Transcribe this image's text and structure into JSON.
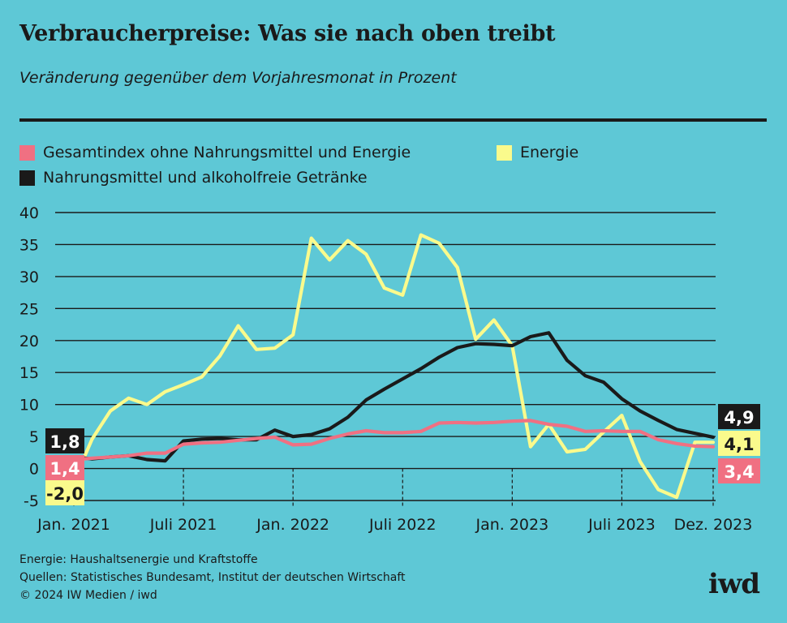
{
  "title": "Verbraucherpreise: Was sie nach oben treibt",
  "subtitle": "Veränderung gegenüber dem Vorjahresmonat in Prozent",
  "legend": [
    {
      "label": "Gesamtindex ohne Nahrungsmittel und Energie",
      "color": "#f07082"
    },
    {
      "label": "Energie",
      "color": "#fafa8c"
    },
    {
      "label": "Nahrungsmittel und alkoholfreie Getränke",
      "color": "#1a1a1a"
    }
  ],
  "chart_data": {
    "type": "line",
    "x": [
      "2021-01",
      "2021-02",
      "2021-03",
      "2021-04",
      "2021-05",
      "2021-06",
      "2021-07",
      "2021-08",
      "2021-09",
      "2021-10",
      "2021-11",
      "2021-12",
      "2022-01",
      "2022-02",
      "2022-03",
      "2022-04",
      "2022-05",
      "2022-06",
      "2022-07",
      "2022-08",
      "2022-09",
      "2022-10",
      "2022-11",
      "2022-12",
      "2023-01",
      "2023-02",
      "2023-03",
      "2023-04",
      "2023-05",
      "2023-06",
      "2023-07",
      "2023-08",
      "2023-09",
      "2023-10",
      "2023-11",
      "2023-12"
    ],
    "x_ticks": [
      {
        "index": 0,
        "label": "Jan. 2021"
      },
      {
        "index": 6,
        "label": "Juli 2021"
      },
      {
        "index": 12,
        "label": "Jan. 2022"
      },
      {
        "index": 18,
        "label": "Juli 2022"
      },
      {
        "index": 24,
        "label": "Jan. 2023"
      },
      {
        "index": 30,
        "label": "Juli 2023"
      },
      {
        "index": 35,
        "label": "Dez. 2023"
      }
    ],
    "y_ticks": [
      40,
      35,
      30,
      25,
      20,
      15,
      10,
      5,
      0,
      -5
    ],
    "ylim": [
      -5,
      40
    ],
    "grid": true,
    "series": [
      {
        "name": "Energie",
        "color": "#fafa8c",
        "values": [
          -2.0,
          4.6,
          9.0,
          11.0,
          10.0,
          12.0,
          13.1,
          14.3,
          17.6,
          22.3,
          18.6,
          18.8,
          20.9,
          36.0,
          32.6,
          35.6,
          33.5,
          28.2,
          27.1,
          36.5,
          35.2,
          31.4,
          20.2,
          23.2,
          19.2,
          3.4,
          6.9,
          2.6,
          3.0,
          5.7,
          8.3,
          1.1,
          -3.3,
          -4.5,
          4.1,
          4.1
        ]
      },
      {
        "name": "Nahrungsmittel und alkoholfreie Getränke",
        "color": "#1a1a1a",
        "values": [
          1.8,
          1.5,
          1.8,
          2.0,
          1.4,
          1.2,
          4.3,
          4.6,
          4.7,
          4.5,
          4.5,
          6.0,
          5.0,
          5.3,
          6.2,
          8.0,
          10.7,
          12.4,
          14.0,
          15.6,
          17.4,
          18.9,
          19.5,
          19.4,
          19.2,
          20.6,
          21.2,
          16.9,
          14.5,
          13.5,
          10.9,
          9.0,
          7.5,
          6.1,
          5.5,
          4.9
        ]
      },
      {
        "name": "Gesamtindex ohne Nahrungsmittel und Energie",
        "color": "#f07082",
        "values": [
          1.4,
          1.6,
          1.8,
          2.0,
          2.4,
          2.4,
          3.8,
          4.0,
          4.1,
          4.4,
          4.7,
          4.9,
          3.7,
          3.8,
          4.7,
          5.4,
          5.9,
          5.6,
          5.6,
          5.8,
          7.1,
          7.2,
          7.1,
          7.2,
          7.4,
          7.5,
          6.9,
          6.6,
          5.8,
          5.9,
          5.8,
          5.8,
          4.5,
          3.9,
          3.5,
          3.4
        ]
      }
    ],
    "labels_left": [
      {
        "text": "1,8",
        "value": 1.8,
        "color": "#1a1a1a",
        "text_color": "#ffffff"
      },
      {
        "text": "1,4",
        "value": 1.4,
        "color": "#f07082",
        "text_color": "#ffffff"
      },
      {
        "text": "-2,0",
        "value": -2.0,
        "color": "#fafa8c",
        "text_color": "#1a1a1a"
      }
    ],
    "labels_right": [
      {
        "text": "4,9",
        "value": 4.9,
        "color": "#1a1a1a",
        "text_color": "#ffffff"
      },
      {
        "text": "4,1",
        "value": 4.1,
        "color": "#fafa8c",
        "text_color": "#1a1a1a"
      },
      {
        "text": "3,4",
        "value": 3.4,
        "color": "#f07082",
        "text_color": "#ffffff"
      }
    ]
  },
  "footer": {
    "note": "Energie: Haushaltsenergie und Kraftstoffe",
    "sources": "Quellen: Statistisches Bundesamt, Institut der deutschen Wirtschaft",
    "copyright": "© 2024 IW Medien / iwd"
  },
  "logo": "iwd"
}
